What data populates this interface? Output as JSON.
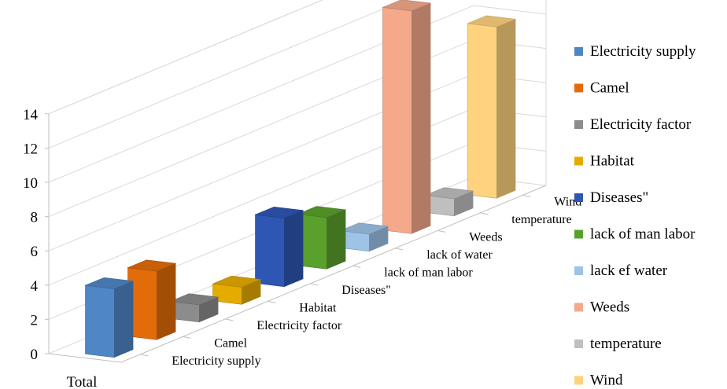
{
  "chart_data": {
    "type": "bar",
    "title": "",
    "xlabel": "",
    "ylabel": "",
    "x_category": "Total",
    "ylim": [
      0,
      14
    ],
    "yticks": [
      0,
      2,
      4,
      6,
      8,
      10,
      12,
      14
    ],
    "grid": true,
    "legend_position": "right",
    "style": "3d-column",
    "series": [
      {
        "name": "Electricity supply",
        "value": 4,
        "color": "#4f86c6"
      },
      {
        "name": "Camel",
        "value": 4,
        "color": "#e36c0a"
      },
      {
        "name": "Electricity factor",
        "value": 1,
        "color": "#8c8c8c"
      },
      {
        "name": "Habitat",
        "value": 1,
        "color": "#e5ac00"
      },
      {
        "name": "Diseases\"",
        "value": 4,
        "color": "#2e56b3"
      },
      {
        "name": "lack of man labor",
        "value": 3,
        "color": "#5aa02c"
      },
      {
        "name": "lack ef water",
        "value": 1,
        "color": "#9dc3e6"
      },
      {
        "name": "Weeds",
        "value": 13,
        "color": "#f4a98b"
      },
      {
        "name": "temperature",
        "value": 1,
        "color": "#bfbfbf"
      },
      {
        "name": "Wind",
        "value": 10,
        "color": "#ffd27f"
      }
    ],
    "depth_labels": [
      "Electricity supply",
      "Camel",
      "Electricity factor",
      "Habitat",
      "Diseases\"",
      "lack of man labor",
      "lack of water",
      "Weeds",
      "temperature",
      "Wind"
    ]
  }
}
